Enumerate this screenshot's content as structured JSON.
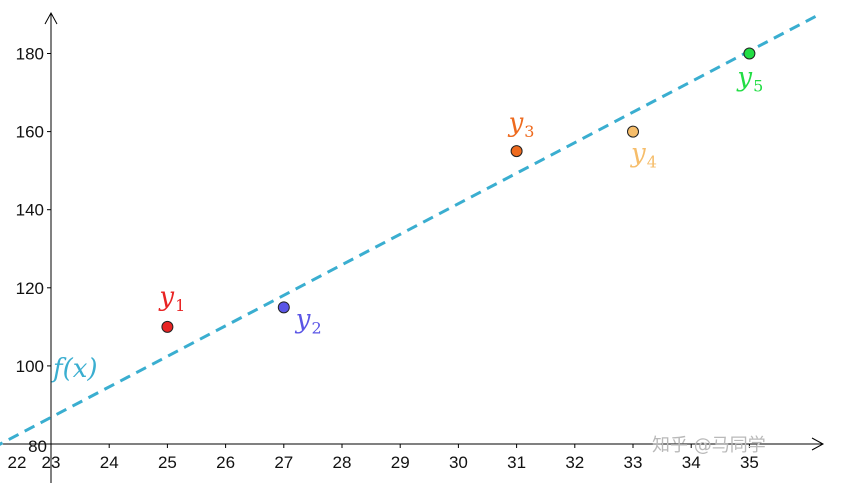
{
  "chart_data": {
    "type": "scatter",
    "xlim": [
      22,
      36
    ],
    "ylim": [
      80,
      190
    ],
    "x_ticks": [
      "22",
      "23",
      "24",
      "25",
      "26",
      "27",
      "28",
      "29",
      "30",
      "31",
      "32",
      "33",
      "34",
      "35"
    ],
    "y_ticks": [
      "80",
      "100",
      "120",
      "140",
      "160",
      "180"
    ],
    "grid": false,
    "points": [
      {
        "label": "y",
        "sub": "1",
        "x": 25,
        "y": 110,
        "color": "#e82424"
      },
      {
        "label": "y",
        "sub": "2",
        "x": 27,
        "y": 115,
        "color": "#5a55e6"
      },
      {
        "label": "y",
        "sub": "3",
        "x": 31,
        "y": 155,
        "color": "#ee6a1e"
      },
      {
        "label": "y",
        "sub": "4",
        "x": 33,
        "y": 160,
        "color": "#f6bd6a"
      },
      {
        "label": "y",
        "sub": "5",
        "x": 35,
        "y": 180,
        "color": "#22dd44"
      }
    ],
    "line": {
      "label": "f(x)",
      "style": "dashed",
      "color": "#3aaed0",
      "points": [
        [
          22,
          79
        ],
        [
          36.2,
          190
        ]
      ]
    }
  },
  "watermark": "知乎 @马同学"
}
